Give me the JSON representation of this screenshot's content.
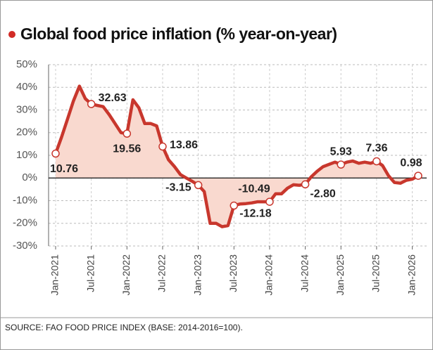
{
  "chart_data": {
    "type": "area-line",
    "title": "Global food price inflation (% year-on-year)",
    "source": "SOURCE: FAO FOOD PRICE INDEX (BASE: 2014-2016=100).",
    "categories": [
      "Jan-2021",
      null,
      null,
      null,
      null,
      null,
      "Jul-2021",
      null,
      null,
      null,
      null,
      null,
      "Jan-2022",
      null,
      null,
      null,
      null,
      null,
      "Jul-2022",
      null,
      null,
      null,
      null,
      null,
      "Jan-2023",
      null,
      null,
      null,
      null,
      null,
      "Jul-2023",
      null,
      null,
      null,
      null,
      null,
      "Jan-2024",
      null,
      null,
      null,
      null,
      null,
      "Jul-2024",
      null,
      null,
      null,
      null,
      null,
      "Jan-2025",
      null,
      null,
      null,
      null,
      null,
      "Jul-2025",
      null,
      null,
      null,
      null,
      null,
      "Jan-2026",
      null
    ],
    "values": [
      10.76,
      18,
      26,
      34,
      40.5,
      35,
      32.63,
      32,
      31.5,
      28,
      24,
      20,
      19.56,
      34.5,
      31,
      24,
      24,
      23,
      13.86,
      8,
      5,
      1.5,
      0,
      -1.5,
      -3.15,
      -6,
      -20,
      -20,
      -21.5,
      -21,
      -12.18,
      -11.5,
      -11.3,
      -11,
      -10.5,
      -10.5,
      -10.49,
      -7,
      -7,
      -4.5,
      -3,
      -3.2,
      -2.8,
      0.5,
      3,
      5,
      6,
      7,
      5.93,
      7,
      7.5,
      6.5,
      7,
      6.5,
      7.36,
      5.5,
      1,
      -2,
      -2.3,
      -1,
      -0.5,
      0.98
    ],
    "value_labels": [
      "10.76",
      null,
      null,
      null,
      null,
      null,
      "32.63",
      null,
      null,
      null,
      null,
      null,
      "19.56",
      null,
      null,
      null,
      null,
      null,
      "13.86",
      null,
      null,
      null,
      null,
      null,
      "-3.15",
      null,
      null,
      null,
      null,
      null,
      "-12.18",
      null,
      null,
      null,
      null,
      null,
      "-10.49",
      null,
      null,
      null,
      null,
      null,
      "-2.80",
      null,
      null,
      null,
      null,
      null,
      "5.93",
      null,
      null,
      null,
      null,
      null,
      "7.36",
      null,
      null,
      null,
      null,
      null,
      null,
      "0.98"
    ],
    "color": "#c8372d",
    "fill_color": "#f9d9cf",
    "ylim": [
      -30,
      50
    ],
    "yticks": [
      {
        "value": -30,
        "label": "-30%"
      },
      {
        "value": -20,
        "label": "-20%"
      },
      {
        "value": -10,
        "label": "-10%"
      },
      {
        "value": 0,
        "label": "0%"
      },
      {
        "value": 10,
        "label": "10%"
      },
      {
        "value": 20,
        "label": "20%"
      },
      {
        "value": 30,
        "label": "30%"
      },
      {
        "value": 40,
        "label": "40%"
      },
      {
        "value": 50,
        "label": "50%"
      }
    ],
    "grid": true
  }
}
